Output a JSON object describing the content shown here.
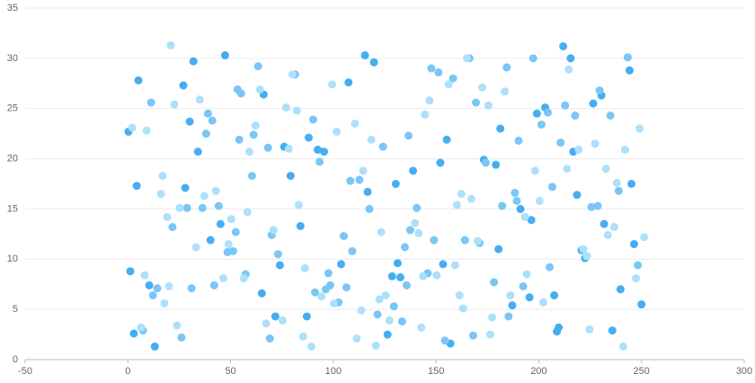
{
  "chart_data": {
    "type": "scatter",
    "xlim": [
      -50,
      300
    ],
    "xticks": [
      -50,
      0,
      50,
      100,
      150,
      200,
      250,
      300
    ],
    "ylim": [
      0,
      35
    ],
    "yticks": [
      0,
      5,
      10,
      15,
      20,
      25,
      30,
      35
    ],
    "grid": true,
    "series": [
      {
        "color": "#45aef2",
        "x": [
          0.3,
          1.2,
          2.9,
          4.3,
          5.1,
          10.4,
          13.1,
          27.0,
          27.9,
          30.1,
          31.9,
          34.1,
          40.2,
          45.1,
          47.3,
          65.2,
          66.1,
          71.8,
          74.0,
          76.1,
          79.2,
          84.0,
          87.1,
          88.0,
          92.4,
          95.5,
          103.8,
          107.4,
          115.4,
          116.7,
          119.8,
          126.4,
          128.6,
          130.4,
          131.3,
          132.6,
          138.8,
          152.1,
          153.4,
          155.2,
          157.0,
          173.3,
          179.1,
          180.4,
          181.3,
          187.1,
          191.1,
          195.5,
          196.4,
          199.1,
          203.1,
          207.5,
          208.8,
          209.7,
          211.9,
          215.5,
          216.8,
          218.6,
          220.8,
          222.5,
          226.5,
          230.5,
          231.8,
          235.8,
          239.8,
          244.2,
          245.1,
          246.4,
          250.0
        ],
        "values": [
          22.7,
          8.8,
          2.6,
          17.3,
          27.8,
          7.4,
          1.3,
          27.3,
          17.1,
          23.7,
          29.7,
          20.7,
          11.9,
          13.5,
          30.3,
          6.6,
          26.4,
          4.3,
          9.4,
          21.2,
          18.3,
          13.3,
          4.3,
          22.1,
          20.9,
          20.7,
          9.5,
          27.6,
          30.3,
          16.7,
          29.6,
          2.5,
          8.3,
          17.5,
          9.6,
          8.2,
          18.8,
          19.6,
          9.5,
          21.9,
          1.6,
          19.9,
          19.4,
          11.0,
          23.0,
          5.4,
          15.0,
          6.2,
          13.9,
          24.5,
          25.1,
          6.4,
          2.8,
          3.2,
          31.2,
          30.0,
          20.7,
          16.4,
          10.9,
          10.1,
          25.5,
          26.3,
          13.5,
          2.9,
          7.0,
          28.8,
          17.5,
          11.5,
          5.5
        ]
      },
      {
        "color": "#7ac6f6",
        "x": [
          7.3,
          11.3,
          12.2,
          14.3,
          21.7,
          26.1,
          28.8,
          31.0,
          36.3,
          38.1,
          39.0,
          41.1,
          42.0,
          44.2,
          48.5,
          51.2,
          52.5,
          53.4,
          54.2,
          55.1,
          57.3,
          60.4,
          61.2,
          63.4,
          68.2,
          69.1,
          70.0,
          73.1,
          81.4,
          90.2,
          91.1,
          93.3,
          96.3,
          97.6,
          98.5,
          102.5,
          105.1,
          106.4,
          108.3,
          109.2,
          112.7,
          117.6,
          121.5,
          124.2,
          129.5,
          133.5,
          134.8,
          135.7,
          136.6,
          137.4,
          140.6,
          145.9,
          147.7,
          149.0,
          151.2,
          154.3,
          158.3,
          164.1,
          166.3,
          168.1,
          169.4,
          171.2,
          174.2,
          178.2,
          182.2,
          184.4,
          185.3,
          188.4,
          189.3,
          190.2,
          192.4,
          197.3,
          201.3,
          204.4,
          205.3,
          206.6,
          210.6,
          212.8,
          217.7,
          225.6,
          228.7,
          229.6,
          234.9,
          238.9,
          243.3,
          248.2
        ],
        "values": [
          2.9,
          25.6,
          6.4,
          7.1,
          13.2,
          2.2,
          15.1,
          7.1,
          15.1,
          22.5,
          24.5,
          23.8,
          7.4,
          15.3,
          10.7,
          10.8,
          12.7,
          26.9,
          21.9,
          26.5,
          8.5,
          18.3,
          22.4,
          29.2,
          21.1,
          2.1,
          12.4,
          10.5,
          28.4,
          23.9,
          6.7,
          19.7,
          7.0,
          8.6,
          7.4,
          5.7,
          12.3,
          7.2,
          17.8,
          10.8,
          17.9,
          15.0,
          4.5,
          21.2,
          5.3,
          3.8,
          11.2,
          7.4,
          22.3,
          12.9,
          15.1,
          8.6,
          29.0,
          11.9,
          28.6,
          1.9,
          28.0,
          11.9,
          30.0,
          2.4,
          25.6,
          11.6,
          19.6,
          7.7,
          15.3,
          29.1,
          4.3,
          16.6,
          15.8,
          21.8,
          7.3,
          30.0,
          23.4,
          24.6,
          9.2,
          17.2,
          21.6,
          25.3,
          24.3,
          15.2,
          15.3,
          26.8,
          24.3,
          16.8,
          30.1,
          9.4
        ]
      },
      {
        "color": "#ade0fa",
        "x": [
          2.1,
          6.4,
          8.2,
          9.1,
          16.1,
          16.9,
          17.8,
          19.1,
          20.0,
          20.9,
          22.6,
          23.9,
          25.2,
          33.2,
          35.0,
          37.2,
          42.8,
          46.4,
          49.0,
          50.3,
          56.4,
          58.2,
          59.1,
          62.1,
          64.3,
          67.3,
          70.9,
          75.3,
          77.0,
          78.3,
          80.1,
          82.3,
          83.2,
          85.3,
          86.2,
          89.3,
          94.2,
          99.4,
          100.3,
          101.6,
          110.5,
          111.4,
          113.6,
          114.5,
          118.5,
          120.7,
          122.4,
          123.3,
          125.5,
          127.3,
          139.7,
          141.5,
          142.8,
          143.7,
          144.6,
          146.8,
          150.3,
          156.1,
          159.2,
          160.1,
          161.4,
          162.3,
          163.2,
          165.0,
          167.2,
          170.3,
          172.5,
          175.5,
          176.4,
          177.3,
          183.5,
          186.2,
          193.3,
          194.2,
          198.2,
          200.4,
          202.2,
          213.7,
          214.6,
          219.4,
          221.7,
          223.4,
          224.7,
          227.4,
          232.7,
          233.6,
          236.7,
          238.0,
          241.1,
          242.0,
          247.3,
          249.1,
          251.3
        ],
        "values": [
          23.1,
          3.2,
          8.4,
          22.8,
          16.5,
          18.3,
          5.6,
          14.2,
          7.3,
          31.3,
          25.4,
          3.4,
          15.1,
          11.2,
          25.9,
          16.3,
          16.8,
          8.1,
          11.5,
          14.0,
          8.1,
          14.7,
          20.7,
          23.3,
          26.9,
          3.6,
          12.9,
          3.9,
          25.1,
          21.0,
          28.4,
          24.8,
          15.4,
          2.3,
          9.1,
          1.3,
          6.3,
          27.4,
          5.6,
          22.7,
          23.5,
          2.1,
          4.9,
          18.8,
          21.9,
          1.4,
          6.0,
          12.7,
          6.4,
          3.9,
          13.6,
          12.6,
          3.2,
          8.3,
          24.4,
          25.8,
          8.4,
          27.4,
          9.4,
          15.4,
          6.4,
          16.5,
          5.1,
          30.0,
          16.0,
          11.8,
          27.1,
          25.3,
          2.5,
          4.2,
          26.7,
          6.4,
          14.2,
          8.5,
          18.8,
          15.8,
          5.7,
          19.0,
          28.9,
          20.9,
          11.0,
          10.3,
          3.0,
          21.5,
          19.0,
          12.4,
          13.2,
          17.6,
          1.3,
          20.9,
          8.1,
          23.0,
          12.2
        ]
      }
    ]
  }
}
